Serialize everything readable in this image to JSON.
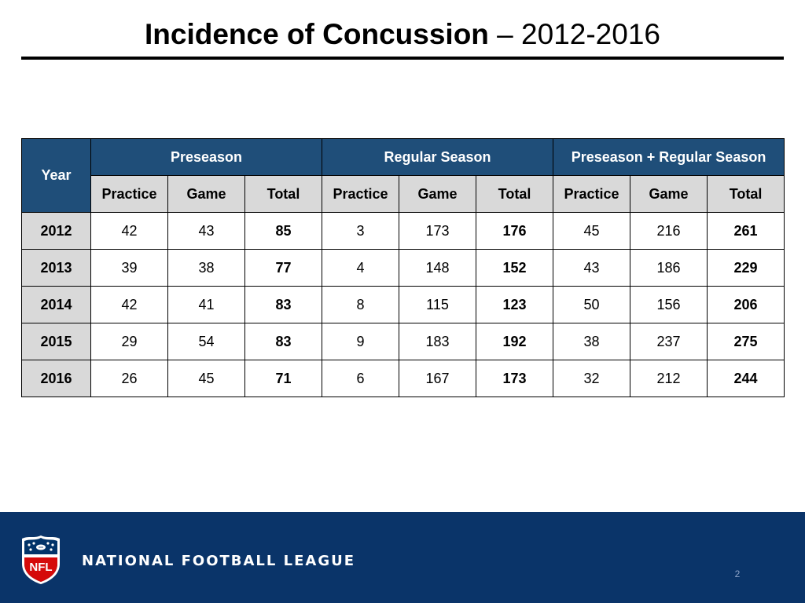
{
  "title": {
    "main": "Incidence of Concussion",
    "separator": " – ",
    "range": "2012-2016"
  },
  "table": {
    "year_header": "Year",
    "groups": [
      "Preseason",
      "Regular Season",
      "Preseason + Regular Season"
    ],
    "subheaders": [
      "Practice",
      "Game",
      "Total",
      "Practice",
      "Game",
      "Total",
      "Practice",
      "Game",
      "Total"
    ],
    "rows": [
      {
        "year": "2012",
        "values": [
          "42",
          "43",
          "85",
          "3",
          "173",
          "176",
          "45",
          "216",
          "261"
        ]
      },
      {
        "year": "2013",
        "values": [
          "39",
          "38",
          "77",
          "4",
          "148",
          "152",
          "43",
          "186",
          "229"
        ]
      },
      {
        "year": "2014",
        "values": [
          "42",
          "41",
          "83",
          "8",
          "115",
          "123",
          "50",
          "156",
          "206"
        ]
      },
      {
        "year": "2015",
        "values": [
          "29",
          "54",
          "83",
          "9",
          "183",
          "192",
          "38",
          "237",
          "275"
        ]
      },
      {
        "year": "2016",
        "values": [
          "26",
          "45",
          "71",
          "6",
          "167",
          "173",
          "32",
          "212",
          "244"
        ]
      }
    ]
  },
  "footer": {
    "logo_text": "NFL",
    "league_name": "NATIONAL FOOTBALL LEAGUE",
    "page_number": "2"
  },
  "colors": {
    "header_blue": "#1f4e79",
    "subheader_gray": "#d9d9d9",
    "footer_navy": "#0a3469",
    "shield_red": "#d50a0a"
  },
  "icons": {
    "logo": "nfl-shield-icon"
  }
}
